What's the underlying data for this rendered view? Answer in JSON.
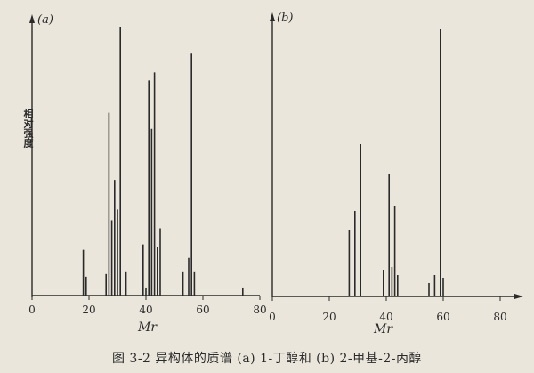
{
  "caption": "图 3-2   异构体的质谱 (a) 1-丁醇和 (b) 2-甲基-2-丙醇",
  "colors": {
    "ink": "#2a2a2a",
    "paper": "#ebe6dc"
  },
  "chart_data": [
    {
      "type": "bar",
      "panel": "(a)",
      "xlabel": "Mr",
      "ylabel": "相对强度",
      "xlim": [
        0,
        80
      ],
      "ylim": [
        0,
        100
      ],
      "xticks": [
        0,
        20,
        40,
        60,
        80
      ],
      "peaks": [
        {
          "x": 18,
          "y": 17
        },
        {
          "x": 19,
          "y": 7
        },
        {
          "x": 26,
          "y": 8
        },
        {
          "x": 27,
          "y": 68
        },
        {
          "x": 28,
          "y": 28
        },
        {
          "x": 29,
          "y": 43
        },
        {
          "x": 30,
          "y": 32
        },
        {
          "x": 31,
          "y": 100
        },
        {
          "x": 33,
          "y": 9
        },
        {
          "x": 39,
          "y": 19
        },
        {
          "x": 40,
          "y": 3
        },
        {
          "x": 41,
          "y": 80
        },
        {
          "x": 42,
          "y": 62
        },
        {
          "x": 43,
          "y": 83
        },
        {
          "x": 44,
          "y": 18
        },
        {
          "x": 45,
          "y": 25
        },
        {
          "x": 53,
          "y": 9
        },
        {
          "x": 55,
          "y": 14
        },
        {
          "x": 56,
          "y": 90
        },
        {
          "x": 57,
          "y": 9
        },
        {
          "x": 74,
          "y": 3
        }
      ]
    },
    {
      "type": "bar",
      "panel": "(b)",
      "xlabel": "Mr",
      "xlim": [
        0,
        80
      ],
      "ylim": [
        0,
        100
      ],
      "xticks": [
        0,
        20,
        40,
        60,
        80
      ],
      "peaks": [
        {
          "x": 27,
          "y": 25
        },
        {
          "x": 29,
          "y": 32
        },
        {
          "x": 31,
          "y": 57
        },
        {
          "x": 39,
          "y": 10
        },
        {
          "x": 41,
          "y": 46
        },
        {
          "x": 42,
          "y": 11
        },
        {
          "x": 43,
          "y": 34
        },
        {
          "x": 44,
          "y": 8
        },
        {
          "x": 55,
          "y": 5
        },
        {
          "x": 57,
          "y": 8
        },
        {
          "x": 59,
          "y": 100
        },
        {
          "x": 60,
          "y": 7
        }
      ]
    }
  ]
}
